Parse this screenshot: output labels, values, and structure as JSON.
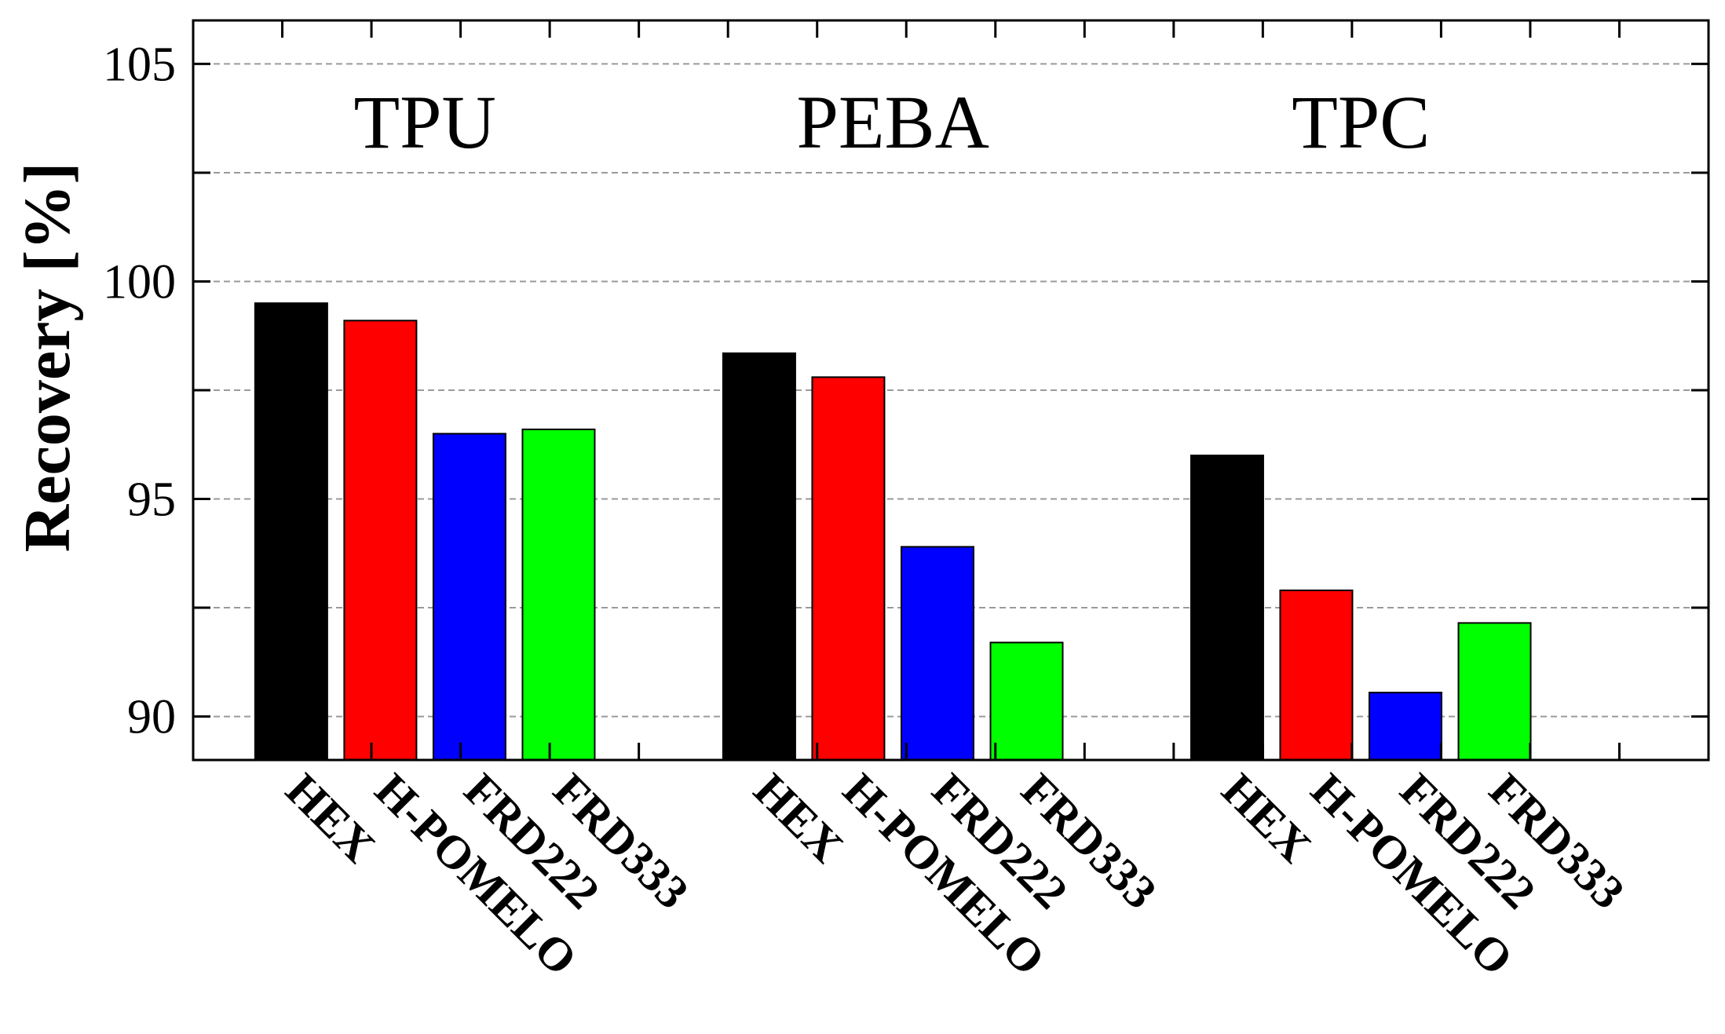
{
  "chart_data": {
    "type": "bar",
    "title": "",
    "xlabel": "",
    "ylabel": "Recovery [%]",
    "ylim": [
      89,
      106
    ],
    "yticks": [
      90,
      95,
      100,
      105
    ],
    "grid": "horizontal dashed",
    "groups": [
      {
        "name": "TPU",
        "categories": [
          "HEX",
          "H-POMELO",
          "FRD222",
          "FRD333"
        ],
        "values": [
          99.5,
          99.1,
          96.5,
          96.6
        ]
      },
      {
        "name": "PEBA",
        "categories": [
          "HEX",
          "H-POMELO",
          "FRD222",
          "FRD333"
        ],
        "values": [
          98.35,
          97.8,
          93.9,
          91.7
        ]
      },
      {
        "name": "TPC",
        "categories": [
          "HEX",
          "H-POMELO",
          "FRD222",
          "FRD333"
        ],
        "values": [
          96.0,
          92.9,
          90.55,
          92.15
        ]
      }
    ],
    "category_colors": {
      "HEX": "#000000",
      "H-POMELO": "#ff0000",
      "FRD222": "#0000ff",
      "FRD333": "#00ff00"
    }
  }
}
